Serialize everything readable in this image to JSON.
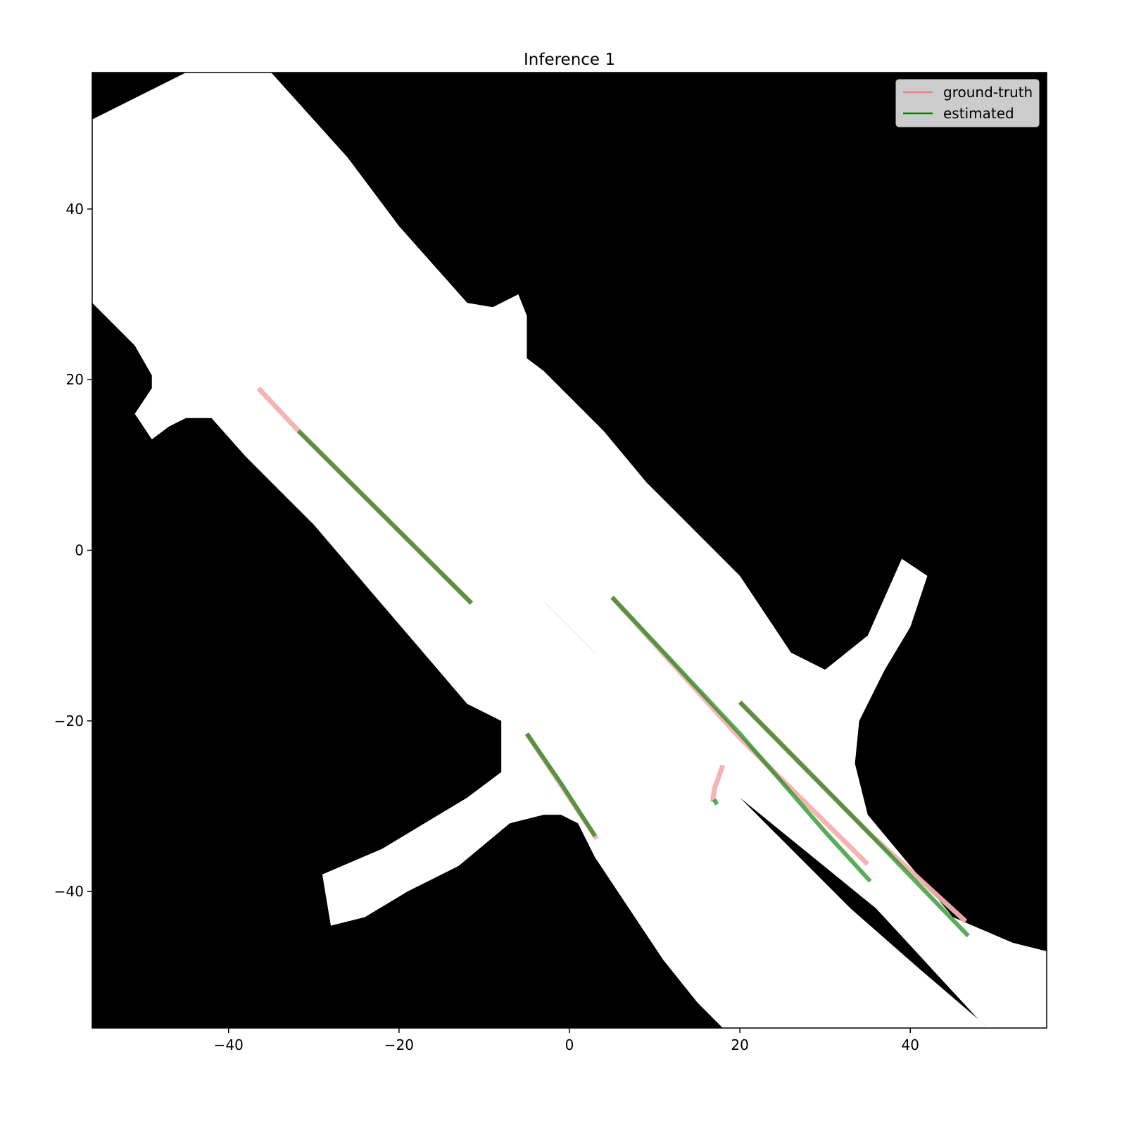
{
  "chart_data": {
    "type": "line",
    "title": "Inference 1",
    "xlabel": "",
    "ylabel": "",
    "xlim": [
      -56,
      56
    ],
    "ylim": [
      -56,
      56
    ],
    "x_ticks": [
      -40,
      -20,
      0,
      20,
      40
    ],
    "y_ticks": [
      40,
      20,
      0,
      -20,
      -40
    ],
    "x_tick_labels": [
      "−40",
      "−20",
      "0",
      "20",
      "40"
    ],
    "y_tick_labels": [
      "40",
      "20",
      "0",
      "−20",
      "−40"
    ],
    "grid": false,
    "legend": {
      "position": "top-right",
      "entries": [
        {
          "label": "ground-truth",
          "color": "#f08080"
        },
        {
          "label": "estimated",
          "color": "#008000"
        }
      ]
    },
    "background_map": {
      "description_colors": {
        "drivable": "#ffffff",
        "non_drivable": "#000000"
      },
      "drivable_regions": [
        [
          [
            -56,
            50.5
          ],
          [
            -45,
            56
          ],
          [
            -35,
            56
          ],
          [
            -26,
            46
          ],
          [
            -20,
            38
          ],
          [
            -12,
            29
          ],
          [
            -9,
            28.5
          ],
          [
            -6,
            30
          ],
          [
            -5,
            27.5
          ],
          [
            -5,
            22.5
          ],
          [
            -3,
            21
          ],
          [
            4,
            14
          ],
          [
            9,
            8
          ],
          [
            14,
            3
          ],
          [
            20,
            -3
          ],
          [
            26,
            -12
          ],
          [
            30,
            -14
          ],
          [
            35,
            -10
          ],
          [
            39,
            -1
          ],
          [
            42,
            -3
          ],
          [
            40,
            -9
          ],
          [
            37,
            -14
          ],
          [
            34,
            -20
          ],
          [
            33.5,
            -25
          ],
          [
            35,
            -31
          ],
          [
            40,
            -37
          ],
          [
            45,
            -43
          ],
          [
            52,
            -46
          ],
          [
            56,
            -47
          ],
          [
            56,
            -56
          ],
          [
            49,
            -56
          ],
          [
            48,
            -55
          ],
          [
            36,
            -42
          ],
          [
            20,
            -29
          ],
          [
            17,
            -29
          ],
          [
            15,
            -27
          ],
          [
            7,
            -17
          ],
          [
            3,
            -12
          ],
          [
            -3,
            -6
          ],
          [
            -8,
            -2
          ],
          [
            -15,
            6
          ],
          [
            -23,
            15
          ],
          [
            -31,
            24
          ],
          [
            -39,
            32
          ],
          [
            -46,
            39
          ],
          [
            -56,
            45.5
          ]
        ],
        [
          [
            -56,
            29
          ],
          [
            -51,
            24
          ],
          [
            -49,
            20.5
          ],
          [
            -49,
            19
          ],
          [
            -50,
            17.5
          ],
          [
            -51,
            16
          ],
          [
            -49,
            13
          ],
          [
            -47,
            14.5
          ],
          [
            -45,
            15.5
          ],
          [
            -42,
            15.5
          ],
          [
            -38,
            11
          ],
          [
            -34,
            7
          ],
          [
            -30,
            3
          ],
          [
            -24,
            -4
          ],
          [
            -18,
            -11
          ],
          [
            -12,
            -18
          ],
          [
            -8,
            -20
          ],
          [
            -8,
            -26
          ],
          [
            -12,
            -29
          ],
          [
            -22,
            -35
          ],
          [
            -29,
            -38
          ],
          [
            -28,
            -44
          ],
          [
            -24,
            -43
          ],
          [
            -19,
            -40
          ],
          [
            -13,
            -37
          ],
          [
            -7,
            -32
          ],
          [
            -3,
            -31
          ],
          [
            -1,
            -31
          ],
          [
            1,
            -32
          ],
          [
            3,
            -36
          ],
          [
            7,
            -42
          ],
          [
            11,
            -48
          ],
          [
            15,
            -53
          ],
          [
            18,
            -56
          ],
          [
            49,
            -56
          ],
          [
            48,
            -55
          ],
          [
            41,
            -49
          ],
          [
            33,
            -42
          ],
          [
            20,
            -29
          ],
          [
            16,
            -27
          ],
          [
            14,
            -24
          ],
          [
            14,
            -22
          ],
          [
            8,
            -17
          ],
          [
            0,
            -9
          ],
          [
            -8,
            -1
          ],
          [
            -16,
            8
          ],
          [
            -24,
            17
          ],
          [
            -32,
            26
          ],
          [
            -40,
            35
          ],
          [
            -48,
            43
          ],
          [
            -56,
            47.5
          ]
        ]
      ]
    },
    "series": [
      {
        "name": "ground-truth",
        "color": "#f4b0b0",
        "lines": [
          [
            [
              -36.5,
              19
            ],
            [
              -31.8,
              14
            ]
          ],
          [
            [
              -31.8,
              14
            ],
            [
              -11.5,
              -6.2
            ]
          ],
          [
            [
              5,
              -5.5
            ],
            [
              20,
              -22
            ],
            [
              35,
              -36.8
            ]
          ],
          [
            [
              20,
              -17.8
            ],
            [
              35,
              -33
            ],
            [
              46.5,
              -43.5
            ]
          ],
          [
            [
              -5,
              -21.5
            ],
            [
              -1,
              -27.5
            ],
            [
              3.2,
              -33.8
            ]
          ],
          [
            [
              18,
              -25.2
            ],
            [
              17,
              -28
            ],
            [
              16.8,
              -29.5
            ]
          ]
        ]
      },
      {
        "name": "estimated",
        "color": "#008000",
        "lines": [
          [
            [
              -31.8,
              14
            ],
            [
              -11.5,
              -6.2
            ]
          ],
          [
            [
              5,
              -5.5
            ],
            [
              20,
              -21.5
            ],
            [
              30,
              -33
            ],
            [
              35.3,
              -38.8
            ]
          ],
          [
            [
              20,
              -17.8
            ],
            [
              35,
              -33
            ],
            [
              46.8,
              -45.2
            ]
          ],
          [
            [
              -5,
              -21.5
            ],
            [
              -1,
              -27.3
            ],
            [
              3,
              -33.5
            ]
          ],
          [
            [
              17,
              -29.2
            ],
            [
              17.3,
              -29.8
            ]
          ]
        ]
      }
    ]
  }
}
